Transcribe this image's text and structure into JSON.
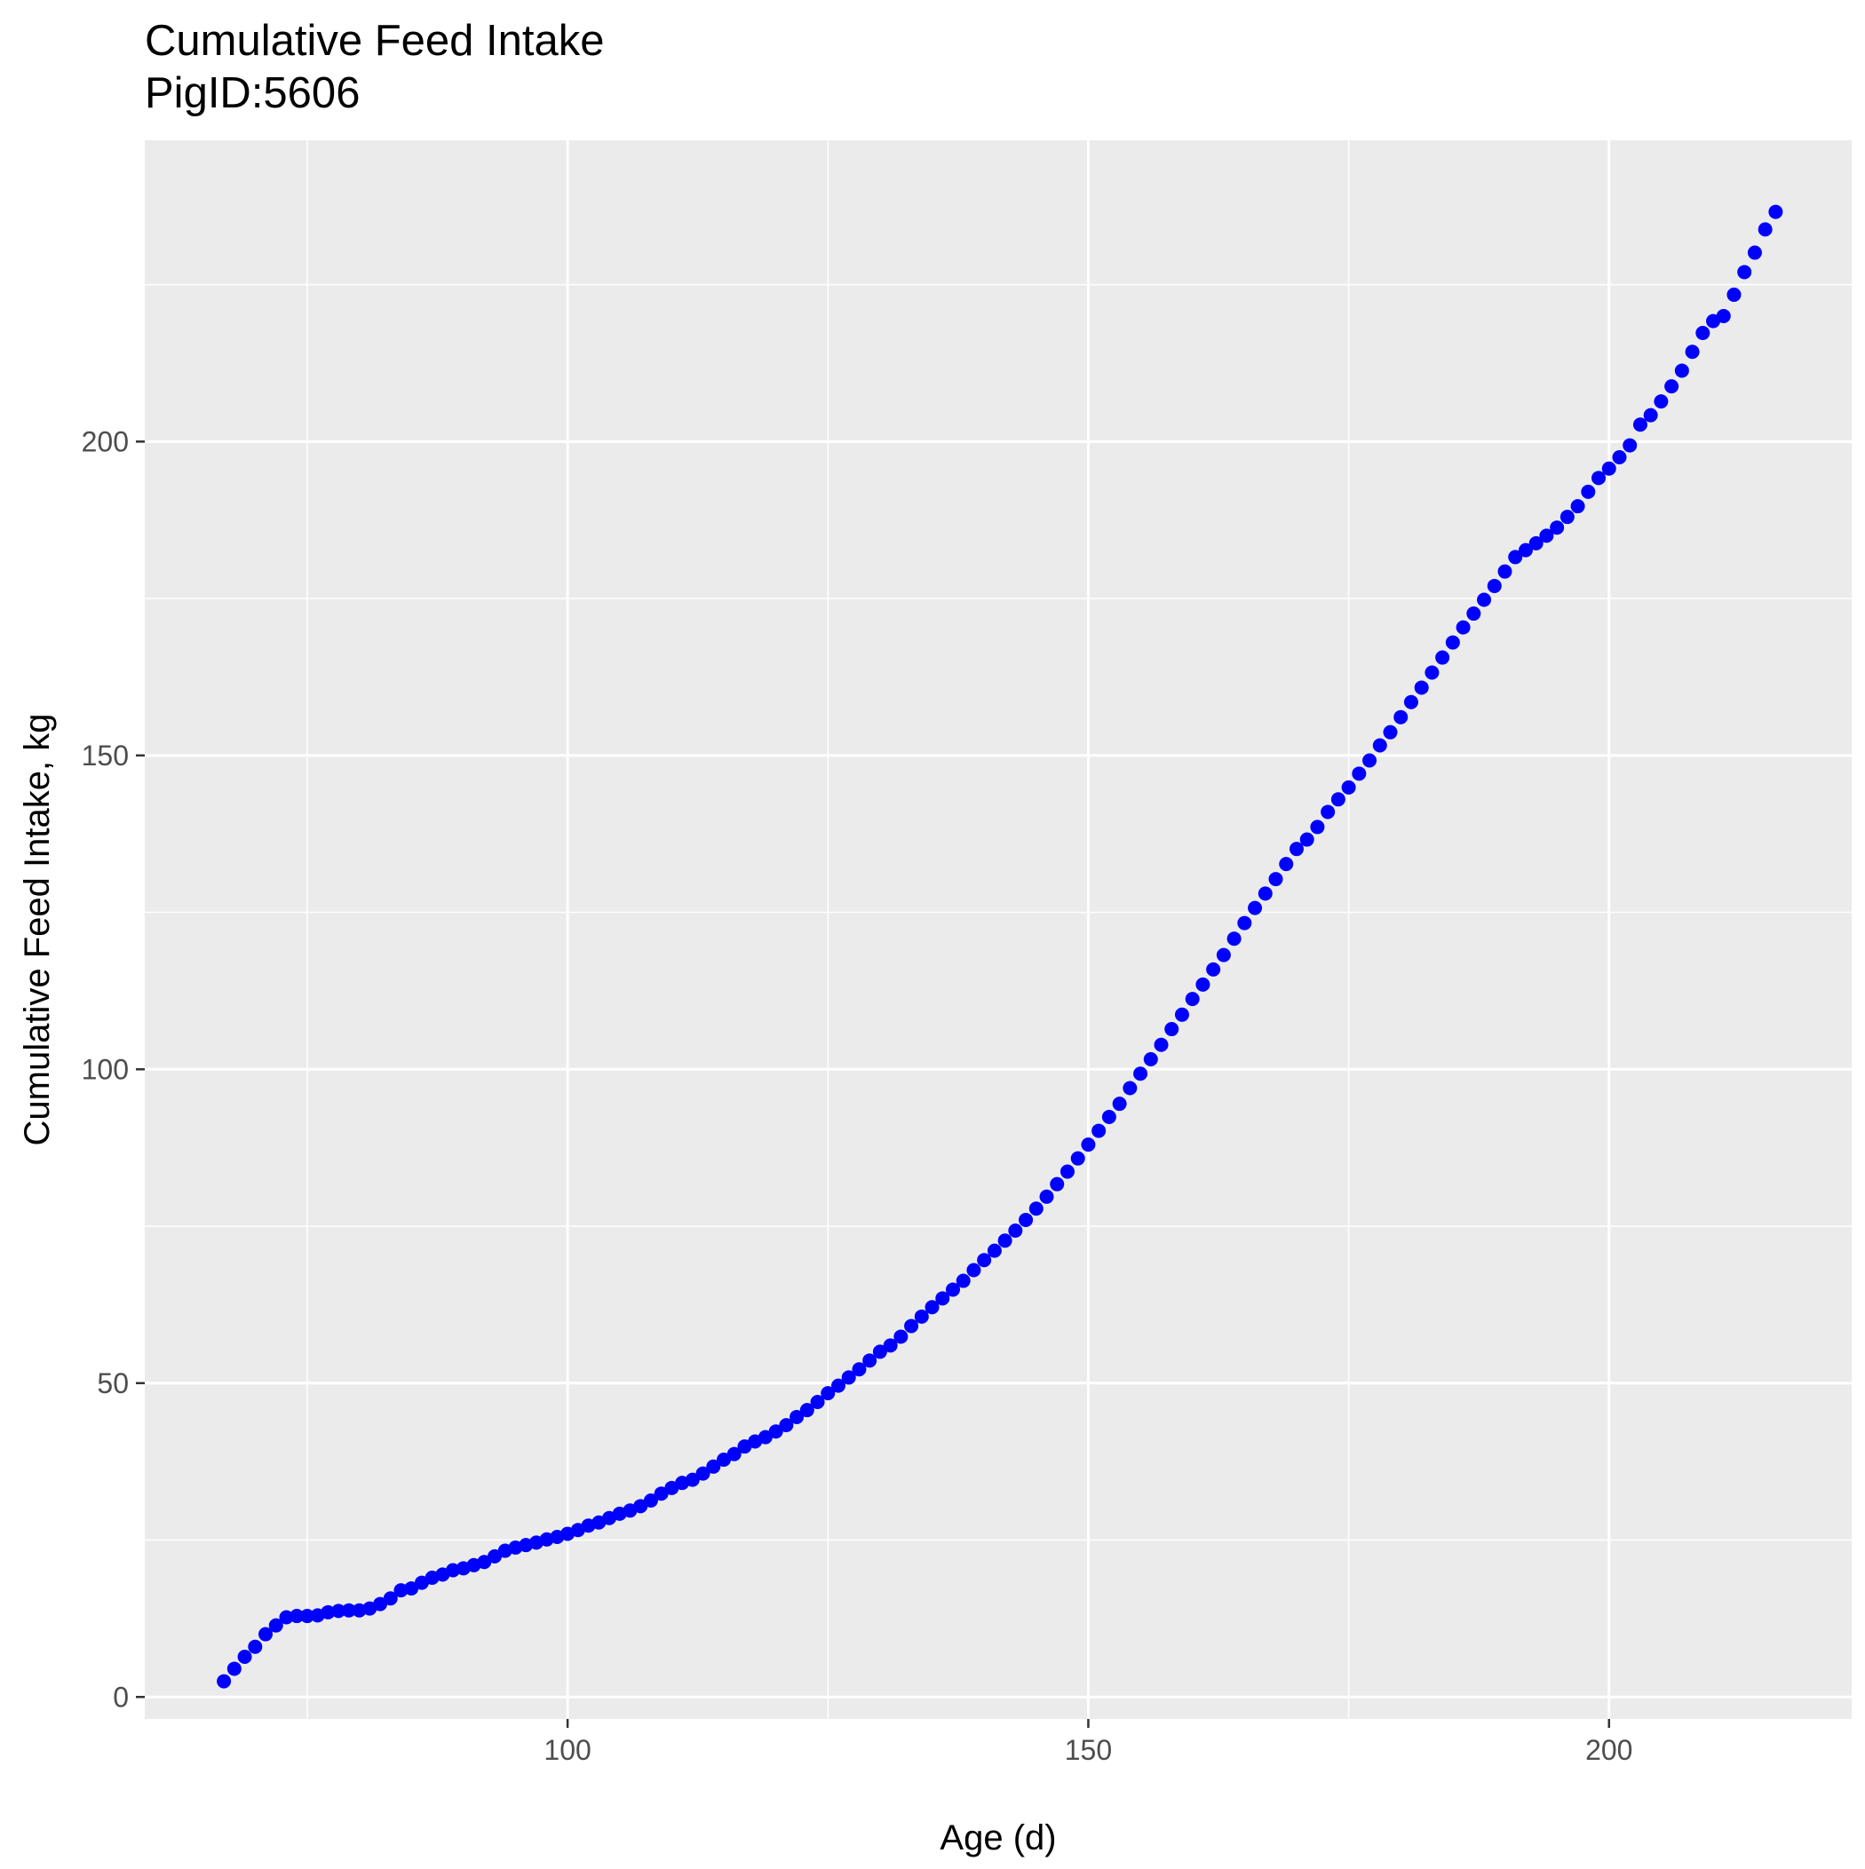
{
  "chart_data": {
    "type": "scatter",
    "title": "Cumulative Feed Intake",
    "subtitle": "PigID:5606",
    "xlabel": "Age (d)",
    "ylabel": "Cumulative Feed Intake, kg",
    "xlim": [
      59.4,
      223.3
    ],
    "ylim": [
      -3.5,
      248
    ],
    "x_ticks": [
      100,
      150,
      200
    ],
    "y_ticks": [
      0,
      50,
      100,
      150,
      200
    ],
    "x_minor_ticks": [
      75,
      125,
      175
    ],
    "y_minor_ticks": [
      25,
      75,
      125,
      175,
      225
    ],
    "grid": true,
    "panel_background": "#EBEBEB",
    "gridline_color": "#FFFFFF",
    "point_color": "#0000FF",
    "series": [
      {
        "x": [
          67,
          68,
          69,
          70,
          71,
          72,
          73,
          74,
          75,
          76,
          77,
          78,
          79,
          80,
          81,
          82,
          83,
          84,
          85,
          86,
          87,
          88,
          89,
          90,
          91,
          92,
          93,
          94,
          95,
          96,
          97,
          98,
          99,
          100,
          101,
          102,
          103,
          104,
          105,
          106,
          107,
          108,
          109,
          110,
          111,
          112,
          113,
          114,
          115,
          116,
          117,
          118,
          119,
          120,
          121,
          122,
          123,
          124,
          125,
          126,
          127,
          128,
          129,
          130,
          131,
          132,
          133,
          134,
          135,
          136,
          137,
          138,
          139,
          140,
          141,
          142,
          143,
          144,
          145,
          146,
          147,
          148,
          149,
          150,
          151,
          152,
          153,
          154,
          155,
          156,
          157,
          158,
          159,
          160,
          161,
          162,
          163,
          164,
          165,
          166,
          167,
          168,
          169,
          170,
          171,
          172,
          173,
          174,
          175,
          176,
          177,
          178,
          179,
          180,
          181,
          182,
          183,
          184,
          185,
          186,
          187,
          188,
          189,
          190,
          191,
          192,
          193,
          194,
          195,
          196,
          197,
          198,
          199,
          200,
          201,
          202,
          203,
          204,
          205,
          206,
          207,
          208,
          209,
          210,
          211,
          212,
          213,
          214,
          215,
          216
        ],
        "y": [
          2.5,
          4.5,
          6.4,
          8.0,
          10.0,
          11.4,
          12.7,
          12.9,
          12.9,
          13.0,
          13.5,
          13.7,
          13.8,
          13.8,
          14.1,
          14.8,
          15.7,
          17.0,
          17.3,
          18.2,
          19.0,
          19.5,
          20.2,
          20.5,
          21.0,
          21.5,
          22.4,
          23.3,
          23.8,
          24.2,
          24.6,
          25.1,
          25.5,
          26.0,
          26.6,
          27.3,
          27.8,
          28.5,
          29.2,
          29.7,
          30.4,
          31.3,
          32.4,
          33.3,
          34.1,
          34.6,
          35.6,
          36.7,
          37.8,
          38.7,
          39.9,
          40.7,
          41.4,
          42.3,
          43.3,
          44.6,
          45.7,
          47.0,
          48.4,
          49.6,
          50.9,
          52.2,
          53.6,
          55.0,
          56.0,
          57.4,
          59.1,
          60.6,
          62.1,
          63.5,
          64.9,
          66.3,
          68.0,
          69.6,
          71.1,
          72.7,
          74.3,
          76.0,
          77.8,
          79.7,
          81.7,
          83.7,
          85.8,
          88.0,
          90.2,
          92.4,
          94.5,
          97.0,
          99.3,
          101.6,
          103.9,
          106.4,
          108.7,
          111.2,
          113.5,
          115.9,
          118.2,
          120.8,
          123.3,
          125.7,
          128.0,
          130.3,
          132.7,
          135.1,
          136.6,
          138.6,
          141.0,
          143.0,
          144.9,
          147.1,
          149.2,
          151.6,
          153.7,
          156.1,
          158.5,
          160.8,
          163.2,
          165.6,
          168.0,
          170.4,
          172.6,
          174.8,
          177.0,
          179.3,
          181.6,
          182.7,
          183.8,
          185.0,
          186.3,
          188.0,
          189.7,
          192.0,
          194.2,
          195.7,
          197.5,
          199.4,
          202.7,
          204.2,
          206.4,
          208.8,
          211.3,
          214.3,
          217.3,
          219.2,
          220.0,
          223.4,
          227.0,
          230.1,
          233.8,
          236.6
        ]
      }
    ]
  }
}
